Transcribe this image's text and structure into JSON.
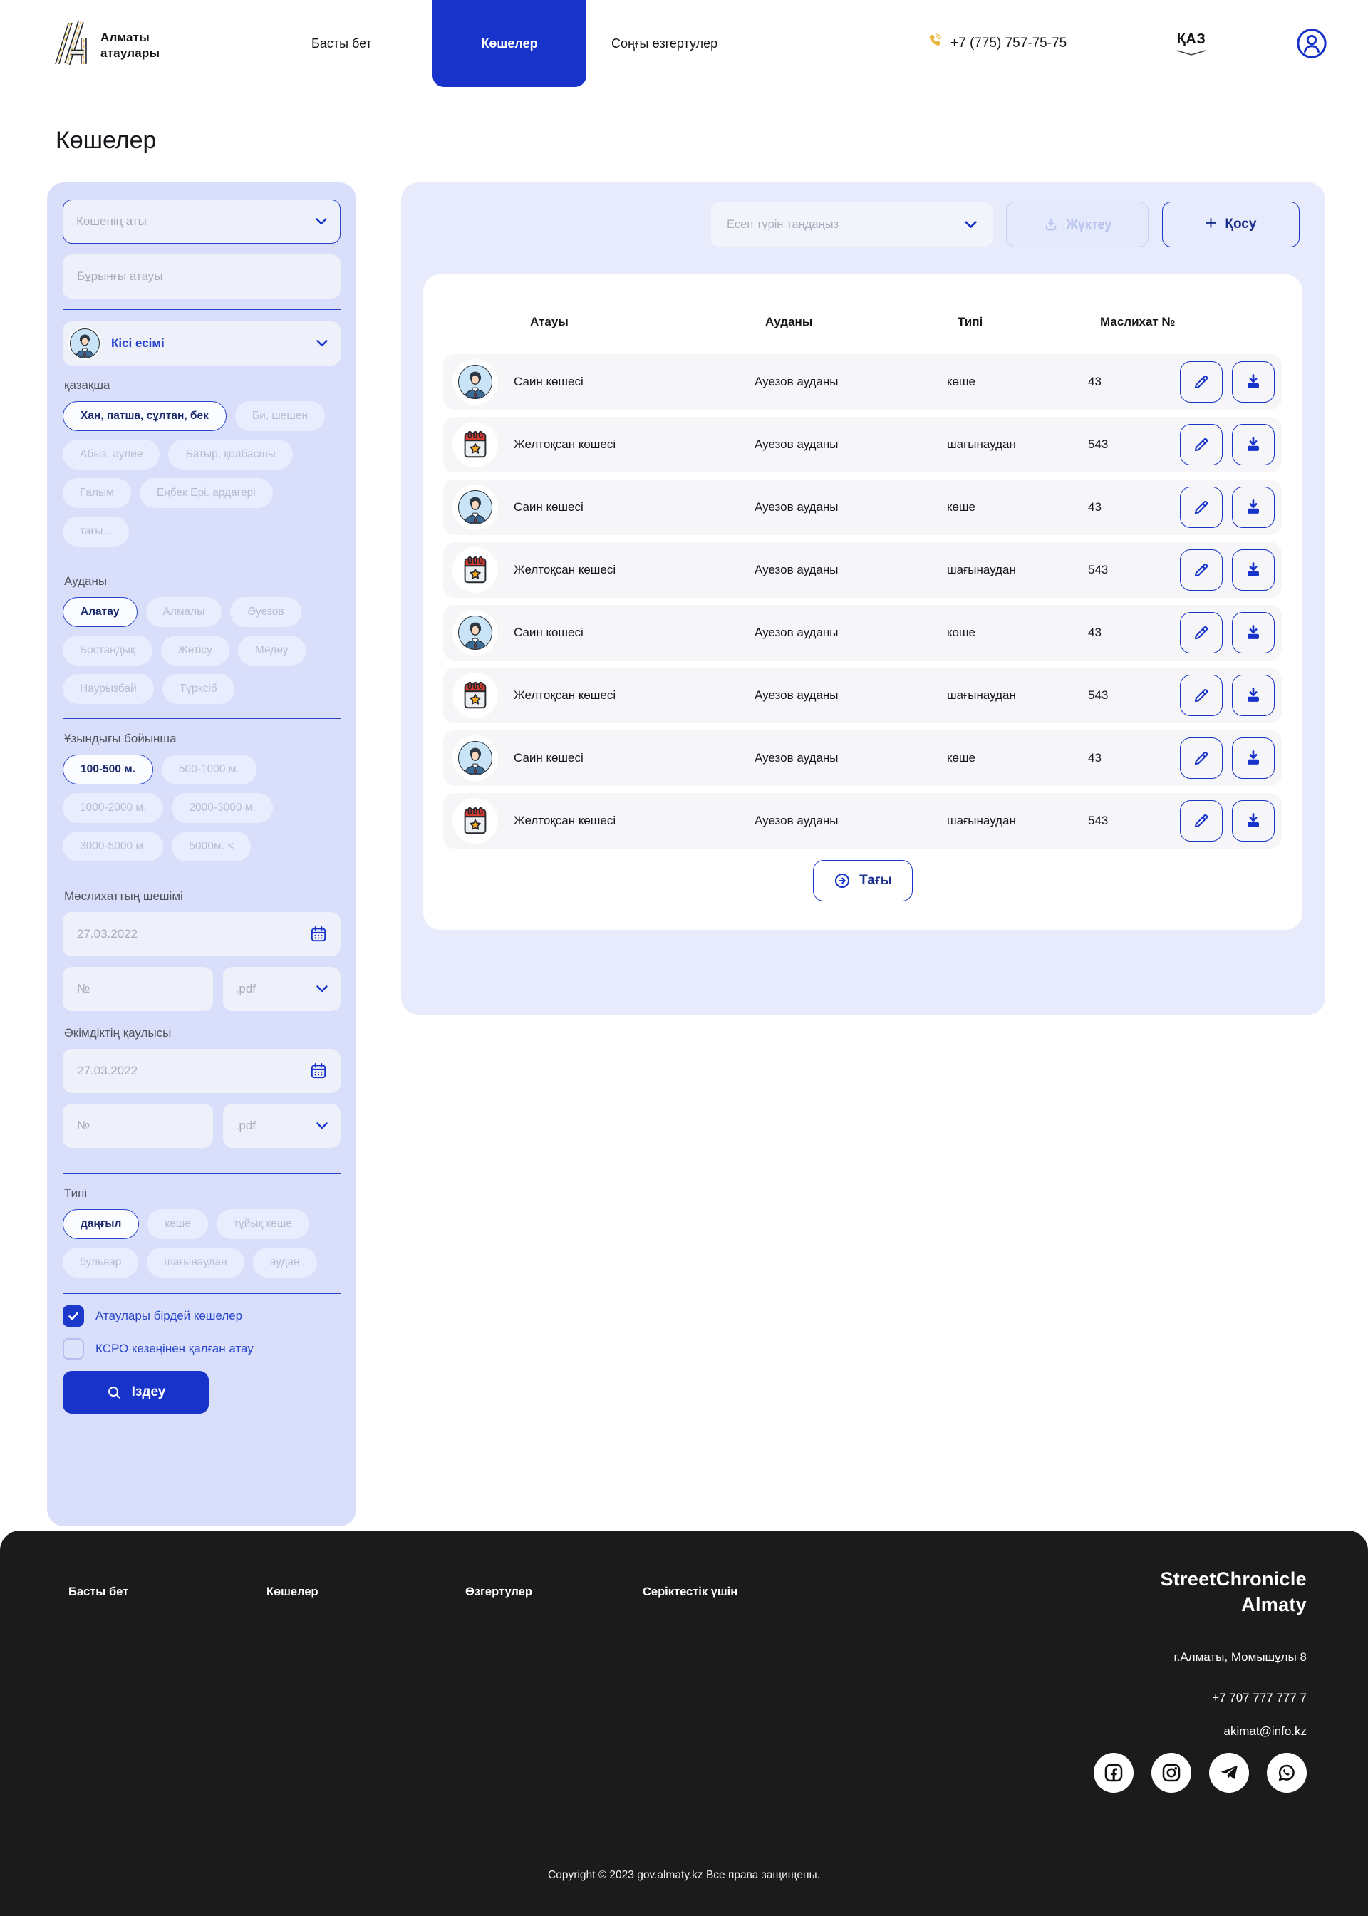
{
  "header": {
    "logo": {
      "line1": "Алматы",
      "line2": "атаулары"
    },
    "nav": [
      {
        "label": "Басты бет",
        "active": false
      },
      {
        "label": "Көшелер",
        "active": true
      },
      {
        "label": "Соңғы өзгертулер",
        "active": false
      }
    ],
    "phone": "+7 (775) 757-75-75",
    "language": "ҚАЗ"
  },
  "page_title": "Көшелер",
  "sidebar": {
    "street_name_placeholder": "Көшенің аты",
    "former_name_placeholder": "Бұрынғы атауы",
    "person_name_label": "Кісі есімі",
    "kazakh_label": "қазақша",
    "kazakh_chips": [
      {
        "label": "Хан, патша, сұлтан, бек",
        "selected": true
      },
      {
        "label": "Би, шешен",
        "selected": false
      },
      {
        "label": "Абыз, әулие",
        "selected": false
      },
      {
        "label": "Батыр, қолбасшы",
        "selected": false
      },
      {
        "label": "Ғалым",
        "selected": false
      },
      {
        "label": "Еңбек Ері, ардагері",
        "selected": false
      },
      {
        "label": "тағы...",
        "selected": false
      }
    ],
    "district_label": "Ауданы",
    "district_chips": [
      {
        "label": "Алатау",
        "selected": true
      },
      {
        "label": "Алмалы",
        "selected": false
      },
      {
        "label": "Әуезов",
        "selected": false
      },
      {
        "label": "Бостандық",
        "selected": false
      },
      {
        "label": "Жетісу",
        "selected": false
      },
      {
        "label": "Медеу",
        "selected": false
      },
      {
        "label": "Наурызбай",
        "selected": false
      },
      {
        "label": "Түрксіб",
        "selected": false
      }
    ],
    "length_label": "Ұзындығы бойынша",
    "length_chips": [
      {
        "label": "100-500 м.",
        "selected": true
      },
      {
        "label": "500-1000 м.",
        "selected": false
      },
      {
        "label": "1000-2000 м.",
        "selected": false
      },
      {
        "label": "2000-3000 м.",
        "selected": false
      },
      {
        "label": "3000-5000 м.",
        "selected": false
      },
      {
        "label": "5000м. <",
        "selected": false
      }
    ],
    "maslihat_label": "Мәслихаттың шешімі",
    "maslihat_date_placeholder": "27.03.2022",
    "maslihat_number_placeholder": "№",
    "maslihat_file_type": ".pdf",
    "akimdik_label": "Әкімдіктің қаулысы",
    "akimdik_date_placeholder": "27.03.2022",
    "akimdik_number_placeholder": "№",
    "akimdik_file_type": ".pdf",
    "type_label": "Типі",
    "type_chips": [
      {
        "label": "даңғыл",
        "selected": true
      },
      {
        "label": "көше",
        "selected": false
      },
      {
        "label": "тұйық көше",
        "selected": false
      },
      {
        "label": "бульвар",
        "selected": false
      },
      {
        "label": "шағынаудан",
        "selected": false
      },
      {
        "label": "аудан",
        "selected": false
      }
    ],
    "checkbox_same_names": {
      "label": "Атаулары бірдей көшелер",
      "checked": true
    },
    "checkbox_soviet": {
      "label": "КСРО кезеңінен қалған атау",
      "checked": false
    },
    "search_button": "Іздеу"
  },
  "main": {
    "report_select_placeholder": "Есеп түрін таңдаңыз",
    "download_button": "Жүктеу",
    "add_button": "Қосу",
    "table": {
      "columns": [
        "Атауы",
        "Ауданы",
        "Типі",
        "Маслихат №"
      ],
      "rows": [
        {
          "icon": "person-avatar",
          "name": "Саин көшесі",
          "district": "Ауезов ауданы",
          "type": "көше",
          "maslihat_no": "43"
        },
        {
          "icon": "calendar",
          "name": "Желтоқсан көшесі",
          "district": "Ауезов ауданы",
          "type": "шағынаудан",
          "maslihat_no": "543"
        },
        {
          "icon": "person-avatar",
          "name": "Саин көшесі",
          "district": "Ауезов ауданы",
          "type": "көше",
          "maslihat_no": "43"
        },
        {
          "icon": "calendar",
          "name": "Желтоқсан көшесі",
          "district": "Ауезов ауданы",
          "type": "шағынаудан",
          "maslihat_no": "543"
        },
        {
          "icon": "person-avatar",
          "name": "Саин көшесі",
          "district": "Ауезов ауданы",
          "type": "көше",
          "maslihat_no": "43"
        },
        {
          "icon": "calendar",
          "name": "Желтоқсан көшесі",
          "district": "Ауезов ауданы",
          "type": "шағынаудан",
          "maslihat_no": "543"
        },
        {
          "icon": "person-avatar",
          "name": "Саин көшесі",
          "district": "Ауезов ауданы",
          "type": "көше",
          "maslihat_no": "43"
        },
        {
          "icon": "calendar",
          "name": "Желтоқсан көшесі",
          "district": "Ауезов ауданы",
          "type": "шағынаудан",
          "maslihat_no": "543"
        }
      ]
    },
    "more_button": "Тағы"
  },
  "footer": {
    "links": [
      "Басты бет",
      "Көшелер",
      "Өзгертулер",
      "Серіктестік үшін"
    ],
    "brand": {
      "line1": "StreetChronicle",
      "line2": "Almaty"
    },
    "address": "г.Алматы, Момышұлы 8",
    "phone": "+7 707 777 777 7",
    "email": "akimat@info.kz",
    "social": [
      "facebook",
      "instagram",
      "telegram",
      "whatsapp"
    ],
    "copyright": "Copyright © 2023 gov.almaty.kz Все права защищены."
  },
  "colors": {
    "primary_blue": "#1733c9",
    "selected_chip_text": "#1b2b6e",
    "sidebar_bg": "#d9dffb",
    "panel_bg": "#e8ebfb",
    "row_bg": "#f6f6f8",
    "footer_bg": "#1b1b1b",
    "phone_icon_gold": "#e9b63b",
    "calendar_red": "#d63c31",
    "star_orange": "#f5a623"
  }
}
